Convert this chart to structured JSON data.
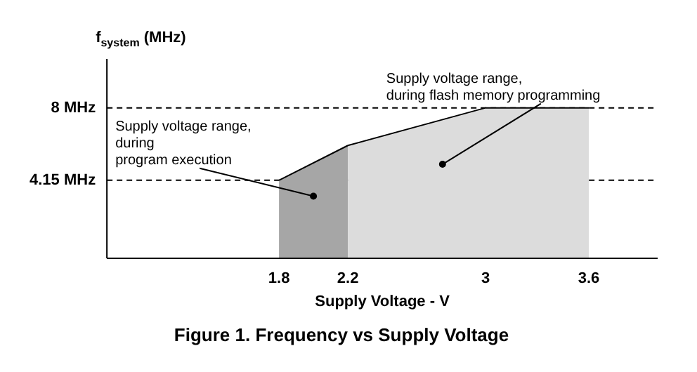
{
  "chart_data": {
    "type": "area",
    "title": "Figure 1. Frequency vs Supply Voltage",
    "xlabel": "Supply Voltage - V",
    "ylabel": "f$_{system}$ (MHz)",
    "series": [
      {
        "x": [
          1.8,
          2.2
        ],
        "values": [
          4.15,
          6.0
        ],
        "color": "#a6a6a6"
      },
      {
        "x": [
          2.2,
          3.0,
          3.6
        ],
        "values": [
          6.0,
          8,
          8
        ],
        "color": "#dcdcdc"
      }
    ],
    "xlim": [
      0.8,
      4.0
    ],
    "xticks": [
      1.8,
      2.2,
      3.0,
      3.6
    ],
    "ylim": [
      0,
      10.6
    ],
    "yticks": [
      {
        "value": 4.15,
        "label": "4.15 MHz"
      },
      {
        "value": 8,
        "label": "8 MHz"
      }
    ],
    "ref_lines": [
      {
        "axis": "y",
        "value": 4.15,
        "line_style": "dashed"
      },
      {
        "axis": "y",
        "value": 8,
        "line_style": "dashed"
      }
    ],
    "annotations": [
      {
        "text": "Supply voltage range,\nduring\nprogram execution",
        "x": 2.0,
        "y": 3.3
      },
      {
        "text": "Supply voltage range,\nduring flash memory programming",
        "x": 2.75,
        "y": 5.0
      }
    ],
    "grid": false,
    "legend": false
  }
}
